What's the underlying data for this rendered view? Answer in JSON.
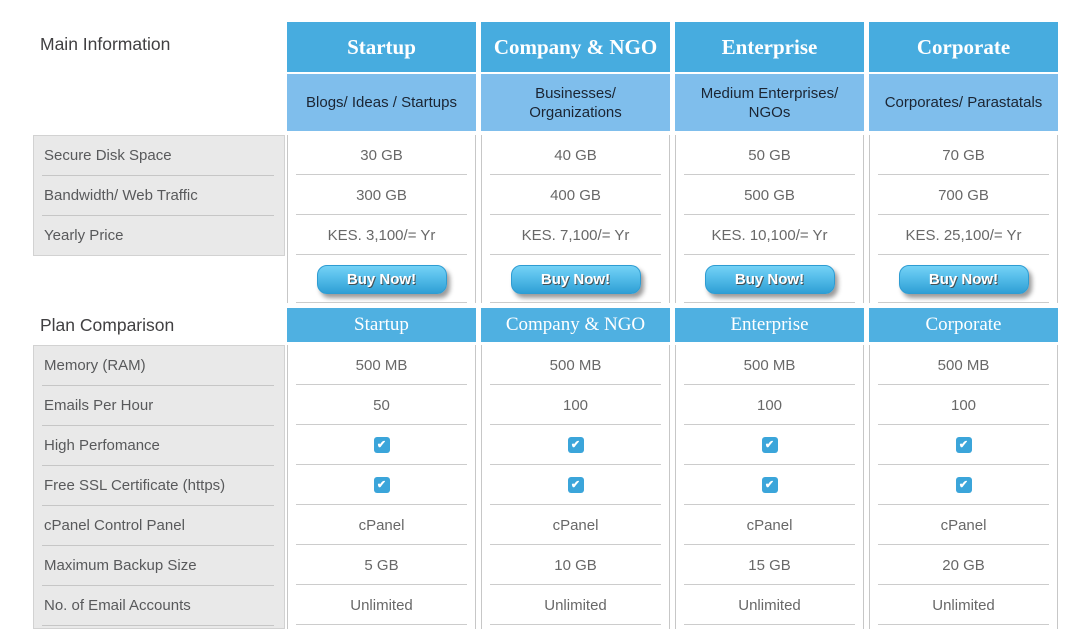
{
  "page": {
    "title_main": "Main Information",
    "title_comparison": "Plan Comparison"
  },
  "plans": [
    {
      "name": "Startup",
      "audience": "Blogs/ Ideas / Startups"
    },
    {
      "name": "Company & NGO",
      "audience": "Businesses/ Organizations"
    },
    {
      "name": "Enterprise",
      "audience": "Medium Enterprises/ NGOs"
    },
    {
      "name": "Corporate",
      "audience": "Corporates/ Parastatals"
    }
  ],
  "main_information": {
    "buy_label": "Buy Now!",
    "rows": [
      {
        "label": "Secure Disk Space",
        "values": [
          "30 GB",
          "40 GB",
          "50 GB",
          "70 GB"
        ]
      },
      {
        "label": "Bandwidth/ Web Traffic",
        "values": [
          "300 GB",
          "400 GB",
          "500 GB",
          "700 GB"
        ]
      },
      {
        "label": "Yearly Price",
        "values": [
          "KES. 3,100/= Yr",
          "KES. 7,100/= Yr",
          "KES. 10,100/= Yr",
          "KES. 25,100/= Yr"
        ]
      }
    ]
  },
  "plan_comparison": {
    "rows": [
      {
        "label": "Memory (RAM)",
        "type": "text",
        "values": [
          "500 MB",
          "500 MB",
          "500 MB",
          "500 MB"
        ]
      },
      {
        "label": "Emails Per Hour",
        "type": "text",
        "values": [
          "50",
          "100",
          "100",
          "100"
        ]
      },
      {
        "label": "High Perfomance",
        "type": "checkbox",
        "checked": [
          true,
          true,
          true,
          true
        ]
      },
      {
        "label": "Free SSL Certificate (https)",
        "type": "checkbox",
        "checked": [
          true,
          true,
          true,
          true
        ]
      },
      {
        "label": "cPanel Control Panel",
        "type": "text",
        "values": [
          "cPanel",
          "cPanel",
          "cPanel",
          "cPanel"
        ]
      },
      {
        "label": "Maximum Backup Size",
        "type": "text",
        "values": [
          "5 GB",
          "10 GB",
          "15 GB",
          "20 GB"
        ]
      },
      {
        "label": "No. of Email Accounts",
        "type": "text",
        "values": [
          "Unlimited",
          "Unlimited",
          "Unlimited",
          "Unlimited"
        ]
      }
    ]
  },
  "icons": {
    "checkbox_checked": "check-icon"
  },
  "colors": {
    "header_blue": "#47ACDF",
    "audience_blue": "#7FBEEC",
    "band_blue": "#4FB0E1",
    "checkbox_blue": "#3BA5DA",
    "button_gradient_top": "#74D2F6",
    "button_gradient_bottom": "#2F9FD5",
    "label_block_bg": "#E9E9E9",
    "border_gray": "#C7C7C7"
  }
}
